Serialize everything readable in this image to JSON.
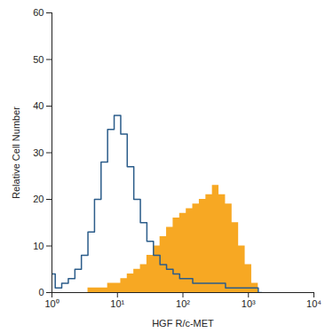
{
  "chart_data": {
    "type": "area",
    "x_label": "HGF R/c-MET",
    "y_label": "Relative Cell Number",
    "log": "x",
    "x": [
      1,
      1.26,
      1.58,
      2,
      2.51,
      3.16,
      3.98,
      5.01,
      6.31,
      7.94,
      10,
      12.6,
      15.8,
      20,
      25.1,
      31.6,
      39.8,
      50.1,
      63.1,
      79.4,
      100,
      126,
      158,
      200,
      251,
      316,
      398,
      501,
      631,
      794,
      1000,
      1259,
      1585
    ],
    "series": [
      {
        "type": "area",
        "color": "#f7a823",
        "values": [
          0,
          0,
          0,
          0,
          0,
          0,
          1,
          1,
          1,
          2,
          2,
          3,
          4,
          5,
          6,
          8,
          10,
          12,
          14,
          16,
          17,
          18,
          19,
          20,
          21,
          23,
          21,
          19,
          15,
          10,
          6,
          2,
          0
        ]
      },
      {
        "type": "line",
        "color": "#2b5c8a",
        "values": [
          4,
          1,
          2,
          3,
          5,
          8,
          13,
          20,
          28,
          35,
          38,
          34,
          27,
          20,
          15,
          11,
          8,
          6,
          5,
          4,
          3,
          3,
          2,
          2,
          2,
          2,
          2,
          1,
          1,
          1,
          1,
          1,
          0
        ]
      }
    ],
    "xlim": [
      1,
      10000
    ],
    "xticks": [
      {
        "value": 1,
        "label": "10⁰"
      },
      {
        "value": 10,
        "label": "10¹"
      },
      {
        "value": 100,
        "label": "10²"
      },
      {
        "value": 1000,
        "label": "10³"
      },
      {
        "value": 10000,
        "label": "10⁴"
      }
    ],
    "ylim": [
      0,
      60
    ],
    "yticks": [
      0,
      10,
      20,
      30,
      40,
      50,
      60
    ],
    "grid": false
  }
}
